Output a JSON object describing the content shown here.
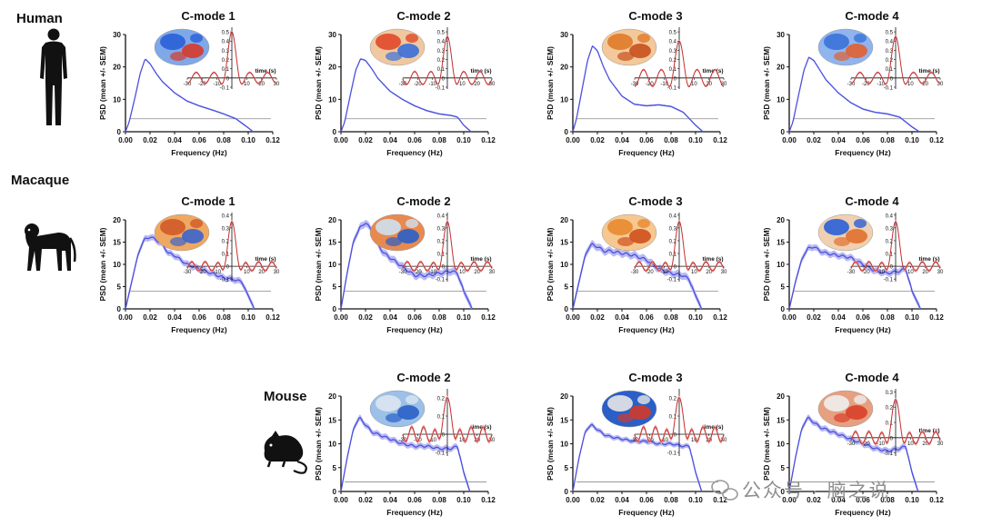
{
  "species": [
    {
      "id": "human",
      "label": "Human"
    },
    {
      "id": "macaque",
      "label": "Macaque"
    },
    {
      "id": "mouse",
      "label": "Mouse"
    }
  ],
  "watermark": "公众号 · 脑之说",
  "colors": {
    "psd_line": "#4c4fe0",
    "psd_band": "#b9baf3",
    "threshold": "#9a9a9a",
    "inset_line": "#c43030",
    "inset_band": "#f2aaaa"
  },
  "chart_data": [
    {
      "type": "line",
      "species": "Human",
      "title": "C-mode 1",
      "xlabel": "Frequency (Hz)",
      "ylabel": "PSD (mean +/- SEM)",
      "xlim": [
        0,
        0.12
      ],
      "ylim": [
        0,
        30
      ],
      "xticks": [
        "0.00",
        "0.02",
        "0.04",
        "0.06",
        "0.08",
        "0.10",
        "0.12"
      ],
      "yticks": [
        "0",
        "10",
        "20",
        "30"
      ],
      "threshold": 4,
      "x": [
        0.0,
        0.003,
        0.008,
        0.012,
        0.016,
        0.02,
        0.025,
        0.03,
        0.04,
        0.05,
        0.06,
        0.07,
        0.08,
        0.09,
        0.1,
        0.104
      ],
      "y": [
        0,
        3,
        11,
        18,
        22.5,
        21,
        18,
        15.5,
        12,
        9.5,
        8,
        6.8,
        5.5,
        4,
        1.2,
        0
      ],
      "sem": 0.25,
      "inset": {
        "xlabel": "time (s)",
        "xticks": [
          "-30",
          "-20",
          "-10",
          "0",
          "10",
          "20",
          "30"
        ],
        "yticks": [
          "0.5",
          "0.4",
          "0.3",
          "0.2",
          "0.1",
          "0",
          "-0.1"
        ],
        "ylim": [
          -0.12,
          0.55
        ],
        "peak": 0.5,
        "period": 12,
        "amp": 0.06
      }
    },
    {
      "type": "line",
      "species": "Human",
      "title": "C-mode 2",
      "xlabel": "Frequency (Hz)",
      "ylabel": "PSD (mean +/- SEM)",
      "xlim": [
        0,
        0.12
      ],
      "ylim": [
        0,
        30
      ],
      "xticks": [
        "0.00",
        "0.02",
        "0.04",
        "0.06",
        "0.08",
        "0.10",
        "0.12"
      ],
      "yticks": [
        "0",
        "10",
        "20",
        "30"
      ],
      "threshold": 4,
      "x": [
        0.0,
        0.003,
        0.008,
        0.012,
        0.016,
        0.02,
        0.025,
        0.03,
        0.04,
        0.05,
        0.06,
        0.07,
        0.08,
        0.09,
        0.095,
        0.1,
        0.106
      ],
      "y": [
        0,
        3,
        12,
        19,
        22.5,
        22,
        19.5,
        16.5,
        12.5,
        10,
        8,
        6.5,
        5.5,
        5,
        4.5,
        2,
        0
      ],
      "sem": 0.25,
      "inset": {
        "xlabel": "time (s)",
        "xticks": [
          "-30",
          "-20",
          "-10",
          "0",
          "10",
          "20",
          "30"
        ],
        "yticks": [
          "0.5",
          "0.4",
          "0.3",
          "0.2",
          "0.1",
          "0",
          "-0.1"
        ],
        "ylim": [
          -0.12,
          0.55
        ],
        "peak": 0.45,
        "period": 11,
        "amp": 0.07
      }
    },
    {
      "type": "line",
      "species": "Human",
      "title": "C-mode 3",
      "xlabel": "Frequency (Hz)",
      "ylabel": "PSD (mean +/- SEM)",
      "xlim": [
        0,
        0.12
      ],
      "ylim": [
        0,
        30
      ],
      "xticks": [
        "0.00",
        "0.02",
        "0.04",
        "0.06",
        "0.08",
        "0.10",
        "0.12"
      ],
      "yticks": [
        "0",
        "10",
        "20",
        "30"
      ],
      "threshold": 4,
      "x": [
        0.0,
        0.003,
        0.008,
        0.012,
        0.016,
        0.02,
        0.025,
        0.03,
        0.04,
        0.05,
        0.06,
        0.07,
        0.08,
        0.09,
        0.1,
        0.106
      ],
      "y": [
        0,
        4,
        14,
        22,
        26.5,
        25,
        20,
        16,
        11,
        8.5,
        8,
        8.3,
        7.8,
        6,
        2,
        0
      ],
      "sem": 0.25,
      "inset": {
        "xlabel": "time (s)",
        "xticks": [
          "-30",
          "-20",
          "-10",
          "0",
          "10",
          "20",
          "30"
        ],
        "yticks": [
          "0.5",
          "0.4",
          "0.3",
          "0.2",
          "0.1",
          "0",
          "-0.1"
        ],
        "ylim": [
          -0.12,
          0.55
        ],
        "peak": 0.4,
        "period": 12,
        "amp": 0.09
      }
    },
    {
      "type": "line",
      "species": "Human",
      "title": "C-mode 4",
      "xlabel": "Frequency (Hz)",
      "ylabel": "PSD (mean +/- SEM)",
      "xlim": [
        0,
        0.12
      ],
      "ylim": [
        0,
        30
      ],
      "xticks": [
        "0.00",
        "0.02",
        "0.04",
        "0.06",
        "0.08",
        "0.10",
        "0.12"
      ],
      "yticks": [
        "0",
        "10",
        "20",
        "30"
      ],
      "threshold": 4,
      "x": [
        0.0,
        0.003,
        0.008,
        0.012,
        0.016,
        0.02,
        0.025,
        0.03,
        0.04,
        0.05,
        0.06,
        0.07,
        0.08,
        0.09,
        0.1,
        0.106
      ],
      "y": [
        0,
        3,
        12,
        19,
        23,
        22,
        19,
        16,
        12,
        9,
        7,
        6,
        5.5,
        4.5,
        1.5,
        0
      ],
      "sem": 0.25,
      "inset": {
        "xlabel": "time (s)",
        "xticks": [
          "-30",
          "-20",
          "-10",
          "0",
          "10",
          "20",
          "30"
        ],
        "yticks": [
          "0.5",
          "0.4",
          "0.3",
          "0.2",
          "0.1",
          "0",
          "-0.1"
        ],
        "ylim": [
          -0.12,
          0.55
        ],
        "peak": 0.45,
        "period": 12,
        "amp": 0.06
      }
    },
    {
      "type": "line",
      "species": "Macaque",
      "title": "C-mode 1",
      "xlabel": "Frequency (Hz)",
      "ylabel": "PSD (mean +/- SEM)",
      "xlim": [
        0,
        0.12
      ],
      "ylim": [
        0,
        20
      ],
      "xticks": [
        "0.00",
        "0.02",
        "0.04",
        "0.06",
        "0.08",
        "0.10",
        "0.12"
      ],
      "yticks": [
        "0",
        "5",
        "10",
        "15",
        "20"
      ],
      "threshold": 4,
      "x": [
        0.0,
        0.005,
        0.01,
        0.015,
        0.02,
        0.025,
        0.03,
        0.035,
        0.04,
        0.05,
        0.06,
        0.07,
        0.08,
        0.09,
        0.095,
        0.1,
        0.105
      ],
      "y": [
        0,
        6,
        12,
        15.5,
        16.2,
        15.5,
        14.5,
        12.5,
        12,
        10,
        9,
        8,
        7,
        6.5,
        6,
        3,
        0
      ],
      "sem": 0.7,
      "inset": {
        "xlabel": "time (s)",
        "xticks": [
          "-30",
          "-20",
          "-10",
          "0",
          "10",
          "20",
          "30"
        ],
        "yticks": [
          "0.4",
          "0.3",
          "0.2",
          "0.1",
          "0",
          "-0.1"
        ],
        "ylim": [
          -0.12,
          0.42
        ],
        "peak": 0.35,
        "period": 9,
        "amp": 0.035
      }
    },
    {
      "type": "line",
      "species": "Macaque",
      "title": "C-mode 2",
      "xlabel": "Frequency (Hz)",
      "ylabel": "PSD (mean +/- SEM)",
      "xlim": [
        0,
        0.12
      ],
      "ylim": [
        0,
        20
      ],
      "xticks": [
        "0.00",
        "0.02",
        "0.04",
        "0.06",
        "0.08",
        "0.10",
        "0.12"
      ],
      "yticks": [
        "0",
        "5",
        "10",
        "15",
        "20"
      ],
      "threshold": 4,
      "x": [
        0.0,
        0.005,
        0.01,
        0.015,
        0.02,
        0.025,
        0.03,
        0.035,
        0.04,
        0.05,
        0.06,
        0.07,
        0.08,
        0.09,
        0.095,
        0.1,
        0.107
      ],
      "y": [
        0,
        8,
        15,
        18,
        19.5,
        17.5,
        14.5,
        12.5,
        11.5,
        9.5,
        7.5,
        7.5,
        8,
        8.5,
        8,
        4,
        0
      ],
      "sem": 0.8,
      "inset": {
        "xlabel": "time (s)",
        "xticks": [
          "-30",
          "-20",
          "-10",
          "0",
          "10",
          "20",
          "30"
        ],
        "yticks": [
          "0.4",
          "0.3",
          "0.2",
          "0.1",
          "0",
          "-0.1"
        ],
        "ylim": [
          -0.12,
          0.42
        ],
        "peak": 0.35,
        "period": 9,
        "amp": 0.035
      }
    },
    {
      "type": "line",
      "species": "Macaque",
      "title": "C-mode 3",
      "xlabel": "Frequency (Hz)",
      "ylabel": "PSD (mean +/- SEM)",
      "xlim": [
        0,
        0.12
      ],
      "ylim": [
        0,
        20
      ],
      "xticks": [
        "0.00",
        "0.02",
        "0.04",
        "0.06",
        "0.08",
        "0.10",
        "0.12"
      ],
      "yticks": [
        "0",
        "5",
        "10",
        "15",
        "20"
      ],
      "threshold": 4,
      "x": [
        0.0,
        0.005,
        0.01,
        0.015,
        0.02,
        0.025,
        0.03,
        0.04,
        0.05,
        0.06,
        0.07,
        0.08,
        0.09,
        0.095,
        0.1,
        0.105
      ],
      "y": [
        0,
        6,
        12,
        14.5,
        14,
        13,
        13,
        12.5,
        12,
        11,
        9,
        8,
        7.5,
        6.5,
        3,
        0
      ],
      "sem": 0.8,
      "inset": {
        "xlabel": "time (s)",
        "xticks": [
          "-30",
          "-20",
          "-10",
          "0",
          "10",
          "20",
          "30"
        ],
        "yticks": [
          "0.4",
          "0.3",
          "0.2",
          "0.1",
          "0",
          "-0.1"
        ],
        "ylim": [
          -0.12,
          0.42
        ],
        "peak": 0.35,
        "period": 9,
        "amp": 0.035
      }
    },
    {
      "type": "line",
      "species": "Macaque",
      "title": "C-mode 4",
      "xlabel": "Frequency (Hz)",
      "ylabel": "PSD (mean +/- SEM)",
      "xlim": [
        0,
        0.12
      ],
      "ylim": [
        0,
        20
      ],
      "xticks": [
        "0.00",
        "0.02",
        "0.04",
        "0.06",
        "0.08",
        "0.10",
        "0.12"
      ],
      "yticks": [
        "0",
        "5",
        "10",
        "15",
        "20"
      ],
      "threshold": 4,
      "x": [
        0.0,
        0.005,
        0.01,
        0.015,
        0.02,
        0.025,
        0.03,
        0.04,
        0.05,
        0.06,
        0.07,
        0.08,
        0.09,
        0.095,
        0.1,
        0.107
      ],
      "y": [
        0,
        6,
        11,
        13.5,
        14,
        13,
        12.5,
        12,
        11.5,
        10,
        8.5,
        8,
        8.5,
        9,
        4,
        0
      ],
      "sem": 0.7,
      "inset": {
        "xlabel": "time (s)",
        "xticks": [
          "-30",
          "-20",
          "-10",
          "0",
          "10",
          "20",
          "30"
        ],
        "yticks": [
          "0.4",
          "0.3",
          "0.2",
          "0.1",
          "0",
          "-0.1"
        ],
        "ylim": [
          -0.12,
          0.42
        ],
        "peak": 0.35,
        "period": 9,
        "amp": 0.035
      }
    },
    {
      "type": "line",
      "species": "Mouse",
      "title": "C-mode 2",
      "xlabel": "Frequency (Hz)",
      "ylabel": "PSD (mean +/- SEM)",
      "xlim": [
        0,
        0.12
      ],
      "ylim": [
        0,
        20
      ],
      "xticks": [
        "0.00",
        "0.02",
        "0.04",
        "0.06",
        "0.08",
        "0.10",
        "0.12"
      ],
      "yticks": [
        "0",
        "5",
        "10",
        "15",
        "20"
      ],
      "threshold": 2,
      "x": [
        0.0,
        0.005,
        0.01,
        0.015,
        0.02,
        0.025,
        0.03,
        0.04,
        0.05,
        0.06,
        0.07,
        0.08,
        0.09,
        0.095,
        0.1,
        0.105
      ],
      "y": [
        0,
        7,
        13,
        15.5,
        14,
        12.5,
        12,
        11,
        10,
        9.5,
        9.5,
        9,
        9,
        9.5,
        4,
        0
      ],
      "sem": 0.6,
      "inset": {
        "xlabel": "time (s)",
        "xticks": [
          "-30",
          "-20",
          "-10",
          "0",
          "10",
          "20",
          "30"
        ],
        "yticks": [
          "0.2",
          "0.1",
          "0",
          "-0.1"
        ],
        "ylim": [
          -0.12,
          0.25
        ],
        "peak": 0.2,
        "period": 8,
        "amp": 0.04
      }
    },
    {
      "type": "line",
      "species": "Mouse",
      "title": "C-mode 3",
      "xlabel": "Frequency (Hz)",
      "ylabel": "PSD (mean +/- SEM)",
      "xlim": [
        0,
        0.12
      ],
      "ylim": [
        0,
        20
      ],
      "xticks": [
        "0.00",
        "0.02",
        "0.04",
        "0.06",
        "0.08",
        "0.10",
        "0.12"
      ],
      "yticks": [
        "0",
        "5",
        "10",
        "15",
        "20"
      ],
      "threshold": 2,
      "x": [
        0.0,
        0.005,
        0.01,
        0.015,
        0.02,
        0.025,
        0.03,
        0.04,
        0.05,
        0.06,
        0.07,
        0.08,
        0.09,
        0.095,
        0.1,
        0.105
      ],
      "y": [
        0,
        7,
        12.5,
        14,
        13,
        12,
        11.5,
        11,
        10.5,
        10.5,
        10,
        10,
        9.5,
        9.5,
        4,
        0
      ],
      "sem": 0.5,
      "inset": {
        "xlabel": "time (s)",
        "xticks": [
          "-30",
          "-20",
          "-10",
          "0",
          "10",
          "20",
          "30"
        ],
        "yticks": [
          "0.2",
          "0.1",
          "0",
          "-0.1"
        ],
        "ylim": [
          -0.12,
          0.25
        ],
        "peak": 0.2,
        "period": 8,
        "amp": 0.04
      }
    },
    {
      "type": "line",
      "species": "Mouse",
      "title": "C-mode 4",
      "xlabel": "Frequency (Hz)",
      "ylabel": "PSD (mean +/- SEM)",
      "xlim": [
        0,
        0.12
      ],
      "ylim": [
        0,
        20
      ],
      "xticks": [
        "0.00",
        "0.02",
        "0.04",
        "0.06",
        "0.08",
        "0.10",
        "0.12"
      ],
      "yticks": [
        "0",
        "5",
        "10",
        "15",
        "20"
      ],
      "threshold": 2,
      "x": [
        0.0,
        0.005,
        0.01,
        0.015,
        0.02,
        0.025,
        0.03,
        0.04,
        0.05,
        0.06,
        0.07,
        0.08,
        0.09,
        0.095,
        0.1,
        0.105
      ],
      "y": [
        0,
        7,
        13,
        15.5,
        14.5,
        13.5,
        13,
        12,
        11,
        10,
        9,
        8.5,
        9,
        9.5,
        4,
        0
      ],
      "sem": 0.6,
      "inset": {
        "xlabel": "time (s)",
        "xticks": [
          "-30",
          "-20",
          "-10",
          "0",
          "10",
          "20",
          "30"
        ],
        "yticks": [
          "0.3",
          "0.2",
          "0.1",
          "0",
          "-0.1"
        ],
        "ylim": [
          -0.12,
          0.32
        ],
        "peak": 0.25,
        "period": 9,
        "amp": 0.04
      }
    }
  ]
}
